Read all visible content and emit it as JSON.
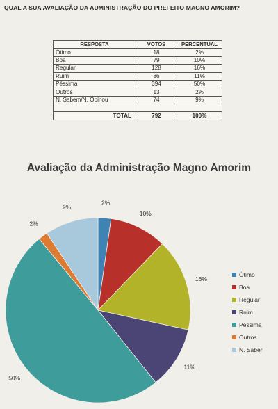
{
  "question": "QUAL A SUA AVALIAÇÃO DA ADMINISTRAÇÃO DO PREFEITO MAGNO AMORIM?",
  "table": {
    "headers": [
      "RESPOSTA",
      "VOTOS",
      "PERCENTUAL"
    ],
    "rows": [
      {
        "label": "Ótimo",
        "votes": "18",
        "percent": "2%"
      },
      {
        "label": "Boa",
        "votes": "79",
        "percent": "10%"
      },
      {
        "label": "Regular",
        "votes": "128",
        "percent": "16%"
      },
      {
        "label": "Ruim",
        "votes": "86",
        "percent": "11%"
      },
      {
        "label": "Péssima",
        "votes": "394",
        "percent": "50%"
      },
      {
        "label": "Outros",
        "votes": "13",
        "percent": "2%"
      },
      {
        "label": "N. Sabem/N. Opinou",
        "votes": "74",
        "percent": "9%"
      }
    ],
    "total": {
      "label": "TOTAL",
      "votes": "792",
      "percent": "100%"
    }
  },
  "chart_data": {
    "type": "pie",
    "title": "Avaliação da Administração Magno Amorim",
    "categories": [
      "Ótimo",
      "Boa",
      "Regular",
      "Ruim",
      "Péssima",
      "Outros",
      "N. Saber"
    ],
    "values": [
      18,
      79,
      128,
      86,
      394,
      13,
      74
    ],
    "data_labels": [
      "2%",
      "10%",
      "16%",
      "11%",
      "50%",
      "2%",
      "9%"
    ],
    "colors": [
      "#3f83b4",
      "#b8302a",
      "#b3b32a",
      "#4a4574",
      "#3e9c9a",
      "#dd7b35",
      "#a8c8dc"
    ],
    "legend_position": "right"
  }
}
